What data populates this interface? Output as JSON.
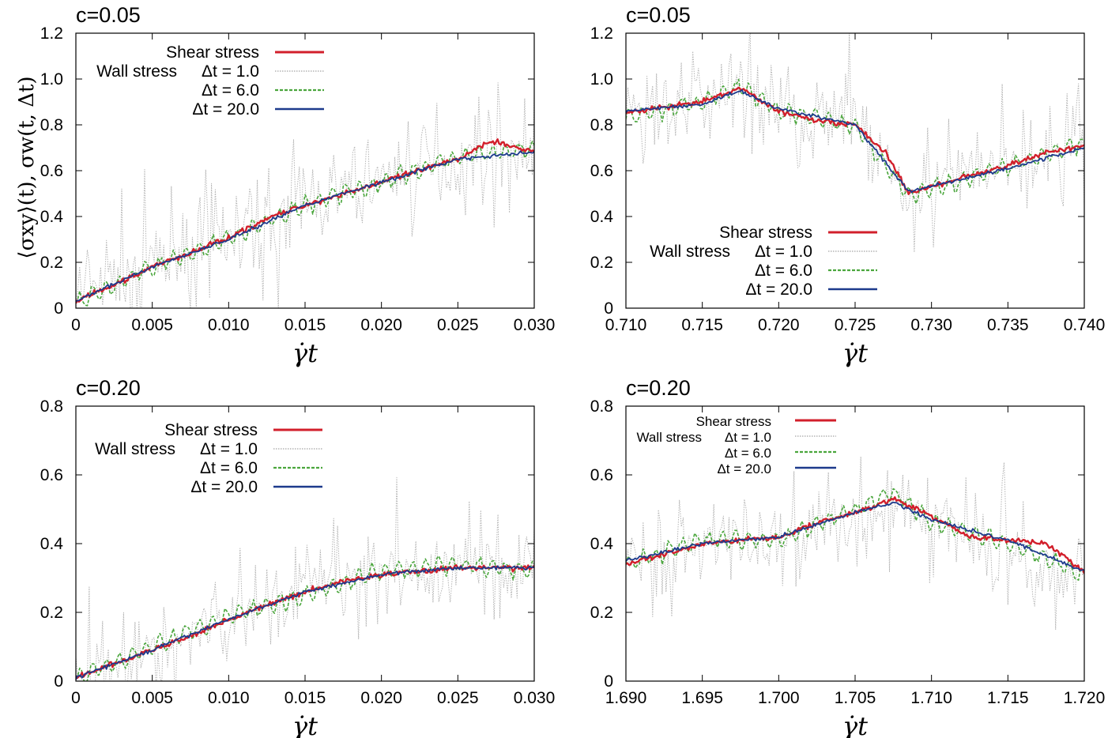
{
  "figure": {
    "y_axis_label": "⟨σxy⟩(t), σw(t, Δt)",
    "x_axis_label": "γ̇t"
  },
  "legend": {
    "shear": "Shear stress",
    "wall_prefix": "Wall stress",
    "dt1": "Δt = 1.0",
    "dt6": "Δt = 6.0",
    "dt20": "Δt = 20.0"
  },
  "colors": {
    "shear": "#d21f2b",
    "wall_1": "#b4b4b4",
    "wall_6": "#4aa63c",
    "wall_20": "#1d3a8c"
  },
  "chart_data": [
    {
      "type": "line",
      "title": "c=0.05",
      "xlabel": "γ̇t",
      "ylabel": "⟨σxy⟩(t), σw(t, Δt)",
      "xlim": [
        0,
        0.03
      ],
      "ylim": [
        0,
        1.2
      ],
      "xticks": [
        0,
        0.005,
        0.01,
        0.015,
        0.02,
        0.025,
        0.03
      ],
      "xtick_labels": [
        "0",
        "0.005",
        "0.010",
        "0.015",
        "0.020",
        "0.025",
        "0.030"
      ],
      "yticks": [
        0,
        0.2,
        0.4,
        0.6,
        0.8,
        1.0,
        1.2
      ],
      "ytick_labels": [
        "0",
        "0.2",
        "0.4",
        "0.6",
        "0.8",
        "1.0",
        "1.2"
      ],
      "legend_position": "top-left",
      "series": [
        {
          "name": "Shear stress",
          "x": [
            0,
            0.0025,
            0.005,
            0.0075,
            0.01,
            0.0125,
            0.015,
            0.0175,
            0.02,
            0.0225,
            0.025,
            0.0265,
            0.0275,
            0.03
          ],
          "y": [
            0.03,
            0.1,
            0.18,
            0.24,
            0.31,
            0.39,
            0.45,
            0.5,
            0.55,
            0.6,
            0.65,
            0.71,
            0.73,
            0.68
          ]
        },
        {
          "name": "Wall stress Δt = 1.0",
          "x": [
            0,
            0.005,
            0.01,
            0.015,
            0.02,
            0.025,
            0.03
          ],
          "y": [
            0.05,
            0.2,
            0.3,
            0.45,
            0.55,
            0.65,
            0.68
          ]
        },
        {
          "name": "Wall stress Δt = 6.0",
          "x": [
            0,
            0.005,
            0.01,
            0.015,
            0.02,
            0.025,
            0.03
          ],
          "y": [
            0.02,
            0.18,
            0.3,
            0.45,
            0.55,
            0.66,
            0.69
          ]
        },
        {
          "name": "Wall stress Δt = 20.0",
          "x": [
            0,
            0.005,
            0.01,
            0.015,
            0.02,
            0.025,
            0.03
          ],
          "y": [
            0.03,
            0.18,
            0.3,
            0.45,
            0.55,
            0.65,
            0.68
          ]
        }
      ]
    },
    {
      "type": "line",
      "title": "c=0.05",
      "xlabel": "γ̇t",
      "ylabel": "",
      "xlim": [
        0.71,
        0.74
      ],
      "ylim": [
        0,
        1.2
      ],
      "xticks": [
        0.71,
        0.715,
        0.72,
        0.725,
        0.73,
        0.735,
        0.74
      ],
      "xtick_labels": [
        "0.710",
        "0.715",
        "0.720",
        "0.725",
        "0.730",
        "0.735",
        "0.740"
      ],
      "yticks": [
        0,
        0.2,
        0.4,
        0.6,
        0.8,
        1.0,
        1.2
      ],
      "ytick_labels": [
        "0",
        "0.2",
        "0.4",
        "0.6",
        "0.8",
        "1.0",
        "1.2"
      ],
      "legend_position": "bottom-center",
      "series": [
        {
          "name": "Shear stress",
          "x": [
            0.71,
            0.712,
            0.715,
            0.7175,
            0.72,
            0.7225,
            0.725,
            0.727,
            0.7285,
            0.73,
            0.7325,
            0.735,
            0.7375,
            0.74
          ],
          "y": [
            0.85,
            0.87,
            0.9,
            0.96,
            0.86,
            0.82,
            0.8,
            0.68,
            0.5,
            0.53,
            0.58,
            0.62,
            0.68,
            0.71
          ]
        },
        {
          "name": "Wall stress Δt = 1.0",
          "x": [
            0.71,
            0.715,
            0.7175,
            0.72,
            0.725,
            0.7285,
            0.735,
            0.74
          ],
          "y": [
            0.85,
            0.9,
            0.96,
            0.86,
            0.8,
            0.5,
            0.62,
            0.71
          ]
        },
        {
          "name": "Wall stress Δt = 6.0",
          "x": [
            0.71,
            0.715,
            0.7175,
            0.72,
            0.725,
            0.7285,
            0.735,
            0.74
          ],
          "y": [
            0.83,
            0.9,
            0.97,
            0.86,
            0.8,
            0.49,
            0.62,
            0.72
          ]
        },
        {
          "name": "Wall stress Δt = 20.0",
          "x": [
            0.71,
            0.715,
            0.7175,
            0.72,
            0.725,
            0.7285,
            0.735,
            0.74
          ],
          "y": [
            0.86,
            0.89,
            0.95,
            0.87,
            0.8,
            0.51,
            0.61,
            0.7
          ]
        }
      ]
    },
    {
      "type": "line",
      "title": "c=0.20",
      "xlabel": "γ̇t",
      "ylabel": "",
      "xlim": [
        0,
        0.03
      ],
      "ylim": [
        0,
        0.8
      ],
      "xticks": [
        0,
        0.005,
        0.01,
        0.015,
        0.02,
        0.025,
        0.03
      ],
      "xtick_labels": [
        "0",
        "0.005",
        "0.010",
        "0.015",
        "0.020",
        "0.025",
        "0.030"
      ],
      "yticks": [
        0,
        0.2,
        0.4,
        0.6,
        0.8
      ],
      "ytick_labels": [
        "0",
        "0.2",
        "0.4",
        "0.6",
        "0.8"
      ],
      "legend_position": "top-left",
      "series": [
        {
          "name": "Shear stress",
          "x": [
            0,
            0.0025,
            0.005,
            0.0075,
            0.01,
            0.0125,
            0.015,
            0.0175,
            0.02,
            0.0225,
            0.025,
            0.0275,
            0.03
          ],
          "y": [
            0.01,
            0.05,
            0.09,
            0.13,
            0.18,
            0.22,
            0.26,
            0.29,
            0.31,
            0.32,
            0.33,
            0.33,
            0.33
          ]
        },
        {
          "name": "Wall stress Δt = 1.0",
          "x": [
            0,
            0.005,
            0.01,
            0.015,
            0.02,
            0.025,
            0.03
          ],
          "y": [
            0.02,
            0.09,
            0.18,
            0.26,
            0.31,
            0.33,
            0.33
          ]
        },
        {
          "name": "Wall stress Δt = 6.0",
          "x": [
            0,
            0.005,
            0.01,
            0.015,
            0.02,
            0.025,
            0.03
          ],
          "y": [
            0.01,
            0.1,
            0.19,
            0.25,
            0.32,
            0.34,
            0.32
          ]
        },
        {
          "name": "Wall stress Δt = 20.0",
          "x": [
            0,
            0.005,
            0.01,
            0.015,
            0.02,
            0.025,
            0.03
          ],
          "y": [
            0.01,
            0.09,
            0.18,
            0.26,
            0.31,
            0.33,
            0.33
          ]
        }
      ]
    },
    {
      "type": "line",
      "title": "c=0.20",
      "xlabel": "γ̇t",
      "ylabel": "",
      "xlim": [
        1.69,
        1.72
      ],
      "ylim": [
        0,
        0.8
      ],
      "xticks": [
        1.69,
        1.695,
        1.7,
        1.705,
        1.71,
        1.715,
        1.72
      ],
      "xtick_labels": [
        "1.690",
        "1.695",
        "1.700",
        "1.705",
        "1.710",
        "1.715",
        "1.720"
      ],
      "yticks": [
        0,
        0.2,
        0.4,
        0.6,
        0.8
      ],
      "ytick_labels": [
        "0",
        "0.2",
        "0.4",
        "0.6",
        "0.8"
      ],
      "legend_position": "top-left",
      "series": [
        {
          "name": "Shear stress",
          "x": [
            1.69,
            1.6925,
            1.695,
            1.6975,
            1.7,
            1.7025,
            1.705,
            1.7075,
            1.71,
            1.7125,
            1.715,
            1.7175,
            1.72
          ],
          "y": [
            0.34,
            0.37,
            0.4,
            0.41,
            0.42,
            0.46,
            0.49,
            0.53,
            0.48,
            0.42,
            0.41,
            0.4,
            0.32
          ]
        },
        {
          "name": "Wall stress Δt = 1.0",
          "x": [
            1.69,
            1.695,
            1.7,
            1.705,
            1.7075,
            1.71,
            1.715,
            1.72
          ],
          "y": [
            0.35,
            0.4,
            0.42,
            0.49,
            0.53,
            0.48,
            0.41,
            0.32
          ]
        },
        {
          "name": "Wall stress Δt = 6.0",
          "x": [
            1.69,
            1.695,
            1.7,
            1.705,
            1.7075,
            1.71,
            1.715,
            1.72
          ],
          "y": [
            0.34,
            0.41,
            0.41,
            0.5,
            0.55,
            0.46,
            0.4,
            0.31
          ]
        },
        {
          "name": "Wall stress Δt = 20.0",
          "x": [
            1.69,
            1.695,
            1.7,
            1.705,
            1.7075,
            1.71,
            1.715,
            1.72
          ],
          "y": [
            0.35,
            0.4,
            0.42,
            0.49,
            0.52,
            0.47,
            0.41,
            0.32
          ]
        }
      ]
    }
  ]
}
